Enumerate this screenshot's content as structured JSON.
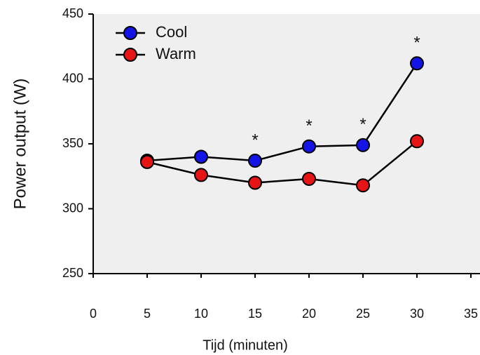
{
  "chart_data": {
    "type": "line",
    "x_label": "Tijd (minuten)",
    "y_label": "Power output (W)",
    "x": [
      5,
      10,
      15,
      20,
      25,
      30
    ],
    "series": [
      {
        "name": "Cool",
        "color": "#1414e6",
        "values": [
          337,
          340,
          337,
          348,
          349,
          412
        ]
      },
      {
        "name": "Warm",
        "color": "#e61414",
        "values": [
          336,
          326,
          320,
          323,
          318,
          352
        ]
      }
    ],
    "annotations": [
      {
        "x": 15,
        "label": "*"
      },
      {
        "x": 20,
        "label": "*"
      },
      {
        "x": 25,
        "label": "*"
      },
      {
        "x": 30,
        "label": "*"
      }
    ],
    "xlim": [
      0,
      35
    ],
    "xticks": [
      0,
      5,
      10,
      15,
      20,
      25,
      30,
      35
    ],
    "ylim": [
      250,
      450
    ],
    "yticks": [
      250,
      300,
      350,
      400,
      450
    ],
    "legend": "upper-left",
    "grid": false
  }
}
